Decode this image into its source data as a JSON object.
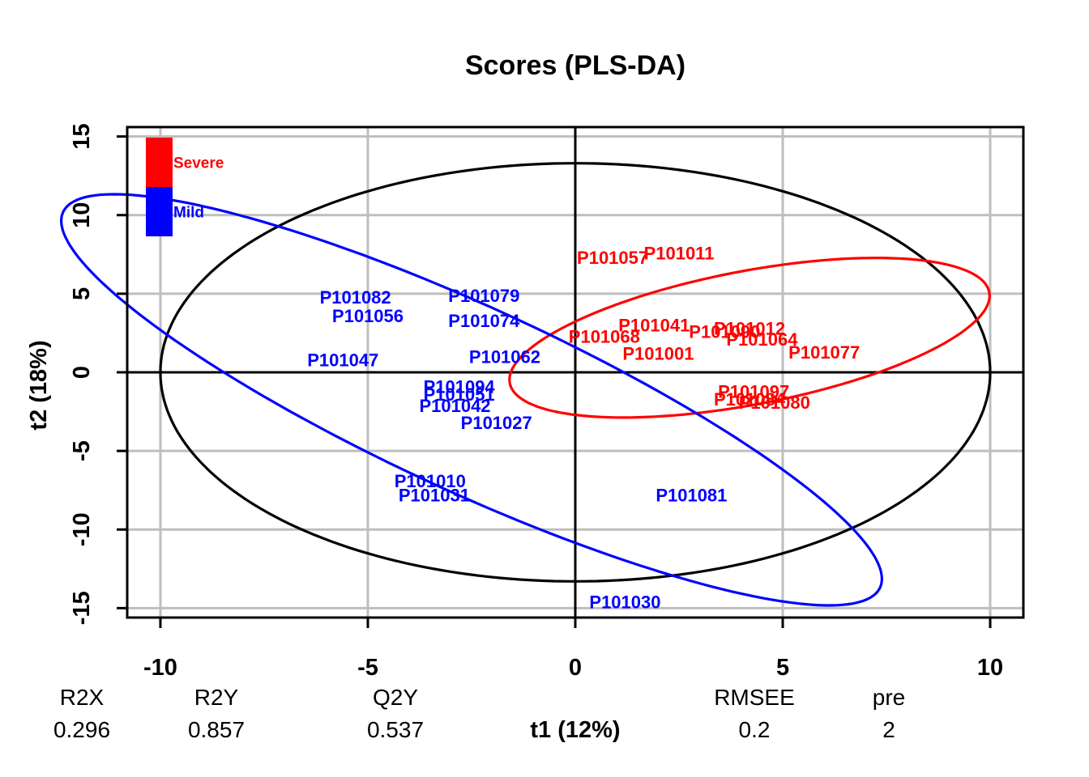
{
  "chart_data": {
    "type": "scatter",
    "title": "Scores (PLS-DA)",
    "xlabel": "t1 (12%)",
    "ylabel": "t2 (18%)",
    "xlim": [
      -10.8,
      10.8
    ],
    "ylim": [
      -15.6,
      15.6
    ],
    "xticks": [
      -10,
      -5,
      0,
      5,
      10
    ],
    "yticks": [
      -15,
      -10,
      -5,
      0,
      5,
      10,
      15
    ],
    "grid": true,
    "legend_position": "top-left",
    "colors": {
      "Severe": "#ff0000",
      "Mild": "#0000ff",
      "hotelling": "#000000"
    },
    "legend": [
      {
        "label": "Severe",
        "color": "#ff0000"
      },
      {
        "label": "Mild",
        "color": "#0000ff"
      }
    ],
    "points": [
      {
        "label": "P101057",
        "x": 0.9,
        "y": 7.3,
        "group": "Severe"
      },
      {
        "label": "P101011",
        "x": 2.5,
        "y": 7.6,
        "group": "Severe"
      },
      {
        "label": "P101041",
        "x": 1.9,
        "y": 3.0,
        "group": "Severe"
      },
      {
        "label": "P101012",
        "x": 4.2,
        "y": 2.8,
        "group": "Severe"
      },
      {
        "label": "P101090",
        "x": 3.6,
        "y": 2.6,
        "group": "Severe"
      },
      {
        "label": "P101064",
        "x": 4.5,
        "y": 2.1,
        "group": "Severe"
      },
      {
        "label": "P101068",
        "x": 0.7,
        "y": 2.3,
        "group": "Severe"
      },
      {
        "label": "P101001",
        "x": 2.0,
        "y": 1.2,
        "group": "Severe"
      },
      {
        "label": "P101077",
        "x": 6.0,
        "y": 1.3,
        "group": "Severe"
      },
      {
        "label": "P101097",
        "x": 4.3,
        "y": -1.2,
        "group": "Severe"
      },
      {
        "label": "P101084",
        "x": 4.2,
        "y": -1.7,
        "group": "Severe"
      },
      {
        "label": "P101080",
        "x": 4.8,
        "y": -1.9,
        "group": "Severe"
      },
      {
        "label": "P101082",
        "x": -5.3,
        "y": 4.8,
        "group": "Mild"
      },
      {
        "label": "P101056",
        "x": -5.0,
        "y": 3.6,
        "group": "Mild"
      },
      {
        "label": "P101079",
        "x": -2.2,
        "y": 4.9,
        "group": "Mild"
      },
      {
        "label": "P101074",
        "x": -2.2,
        "y": 3.3,
        "group": "Mild"
      },
      {
        "label": "P101047",
        "x": -5.6,
        "y": 0.8,
        "group": "Mild"
      },
      {
        "label": "P101062",
        "x": -1.7,
        "y": 1.0,
        "group": "Mild"
      },
      {
        "label": "P101094",
        "x": -2.8,
        "y": -0.9,
        "group": "Mild"
      },
      {
        "label": "P101051",
        "x": -2.8,
        "y": -1.4,
        "group": "Mild"
      },
      {
        "label": "P101042",
        "x": -2.9,
        "y": -2.1,
        "group": "Mild"
      },
      {
        "label": "P101027",
        "x": -1.9,
        "y": -3.2,
        "group": "Mild"
      },
      {
        "label": "P101010",
        "x": -3.5,
        "y": -6.9,
        "group": "Mild"
      },
      {
        "label": "P101031",
        "x": -3.4,
        "y": -7.8,
        "group": "Mild"
      },
      {
        "label": "P101081",
        "x": 2.8,
        "y": -7.8,
        "group": "Mild"
      },
      {
        "label": "P101030",
        "x": 1.2,
        "y": -14.6,
        "group": "Mild"
      }
    ],
    "ellipses": [
      {
        "group": "hotelling",
        "cx": 0,
        "cy": 0,
        "rx": 10.0,
        "ry": 13.3,
        "angle": 0
      },
      {
        "group": "Severe",
        "cx": 4.2,
        "cy": 2.2,
        "rx": 3.7,
        "ry": 6.75,
        "angle": -52
      },
      {
        "group": "Mild",
        "cx": -2.5,
        "cy": -1.75,
        "rx": 4.0,
        "ry": 15.9,
        "angle": 36
      }
    ],
    "summary": {
      "headers": [
        "R2X",
        "R2Y",
        "Q2Y",
        "RMSEE",
        "pre"
      ],
      "values": [
        "0.296",
        "0.857",
        "0.537",
        "0.2",
        "2"
      ]
    }
  }
}
